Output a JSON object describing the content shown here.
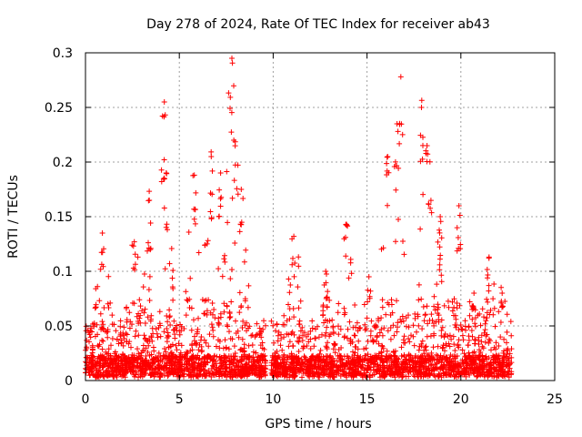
{
  "chart_data": {
    "type": "scatter",
    "title": "Day 278 of 2024, Rate Of TEC Index for receiver ab43",
    "xlabel": "GPS time / hours",
    "ylabel": "ROTI / TECUs",
    "xlim": [
      0,
      25
    ],
    "ylim": [
      0,
      0.3
    ],
    "x_ticks": [
      "0",
      "5",
      "10",
      "15",
      "20",
      "25"
    ],
    "y_ticks": [
      "0",
      "0.05",
      "0.1",
      "0.15",
      "0.2",
      "0.25",
      "0.3"
    ],
    "grid": true,
    "marker": "plus",
    "color": "#ff0000",
    "data_gap_hours": [
      9.6,
      9.9
    ],
    "data_extent_hours": [
      0.0,
      22.7
    ],
    "peaks": [
      {
        "x": 0.9,
        "y": 0.135
      },
      {
        "x": 2.6,
        "y": 0.127
      },
      {
        "x": 3.4,
        "y": 0.165
      },
      {
        "x": 4.2,
        "y": 0.255
      },
      {
        "x": 4.3,
        "y": 0.19
      },
      {
        "x": 5.8,
        "y": 0.188
      },
      {
        "x": 6.7,
        "y": 0.205
      },
      {
        "x": 7.2,
        "y": 0.19
      },
      {
        "x": 7.8,
        "y": 0.295
      },
      {
        "x": 7.9,
        "y": 0.22
      },
      {
        "x": 8.3,
        "y": 0.175
      },
      {
        "x": 11.1,
        "y": 0.132
      },
      {
        "x": 12.8,
        "y": 0.1
      },
      {
        "x": 13.9,
        "y": 0.143
      },
      {
        "x": 15.1,
        "y": 0.095
      },
      {
        "x": 16.1,
        "y": 0.205
      },
      {
        "x": 16.6,
        "y": 0.235
      },
      {
        "x": 16.8,
        "y": 0.278
      },
      {
        "x": 17.9,
        "y": 0.25
      },
      {
        "x": 18.2,
        "y": 0.215
      },
      {
        "x": 18.9,
        "y": 0.15
      },
      {
        "x": 19.9,
        "y": 0.16
      },
      {
        "x": 20.7,
        "y": 0.08
      },
      {
        "x": 21.5,
        "y": 0.113
      },
      {
        "x": 22.2,
        "y": 0.08
      }
    ]
  }
}
